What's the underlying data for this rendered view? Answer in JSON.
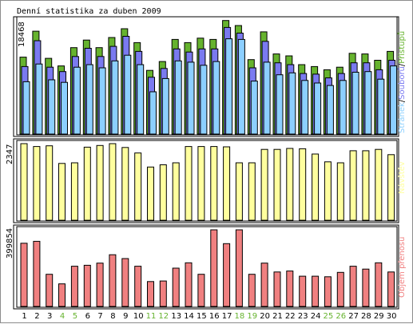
{
  "title": "Denní statistika za duben 2009",
  "colors": {
    "pristupu": "#66b32e",
    "souboru": "#7a7af0",
    "stranek": "#8ccfff",
    "navstev": "#ffff9e",
    "objem": "#f08080",
    "weekend_day": "#66b32e",
    "weekday": "#000000",
    "legend_stranek": "#8ccfff",
    "legend_souboru": "#7a7af0",
    "legend_pristupu": "#66b32e",
    "legend_navstev": "#ffff9e",
    "legend_objem": "#f08080"
  },
  "chart_data": [
    {
      "type": "bar",
      "panel": "top",
      "ymax_label": "18468",
      "ylim": [
        0,
        18468
      ],
      "legend": {
        "stranek": "Stránek",
        "sep1": "/",
        "souboru": "Souborů",
        "sep2": "/",
        "pristupu": "Přístupů"
      },
      "categories": [
        "1",
        "2",
        "3",
        "4",
        "5",
        "6",
        "7",
        "8",
        "9",
        "10",
        "11",
        "12",
        "13",
        "14",
        "15",
        "16",
        "17",
        "18",
        "19",
        "20",
        "21",
        "22",
        "23",
        "24",
        "25",
        "26",
        "27",
        "28",
        "29",
        "30"
      ],
      "series": [
        {
          "name": "Přístupů",
          "values": [
            12200,
            16300,
            12000,
            10800,
            13700,
            14900,
            13700,
            15300,
            16700,
            14500,
            10100,
            11500,
            15000,
            14500,
            15200,
            15000,
            18000,
            17200,
            11800,
            16200,
            12700,
            12400,
            11000,
            10700,
            10200,
            10600,
            12800,
            12700,
            11700,
            13100
          ]
        },
        {
          "name": "Souborů",
          "values": [
            10700,
            14800,
            10600,
            9900,
            12300,
            13600,
            12300,
            13900,
            15500,
            13100,
            9000,
            10400,
            13500,
            13000,
            13500,
            13500,
            16900,
            16000,
            10500,
            14700,
            11300,
            11000,
            9600,
            9500,
            8900,
            9600,
            11300,
            11300,
            10200,
            11700
          ]
        },
        {
          "name": "Stránek",
          "values": [
            8300,
            11100,
            8600,
            8200,
            10600,
            11000,
            10500,
            11600,
            12500,
            11000,
            6700,
            8800,
            11600,
            11400,
            10900,
            11500,
            15100,
            15000,
            8400,
            11400,
            9400,
            9700,
            8500,
            8100,
            7700,
            8500,
            9800,
            9900,
            8700,
            10800
          ]
        }
      ]
    },
    {
      "type": "bar",
      "panel": "middle",
      "ymax_label": "2347",
      "ylim": [
        0,
        2347
      ],
      "legend": {
        "navstev": "Návštěv"
      },
      "categories": [
        "1",
        "2",
        "3",
        "4",
        "5",
        "6",
        "7",
        "8",
        "9",
        "10",
        "11",
        "12",
        "13",
        "14",
        "15",
        "16",
        "17",
        "18",
        "19",
        "20",
        "21",
        "22",
        "23",
        "24",
        "25",
        "26",
        "27",
        "28",
        "29",
        "30"
      ],
      "series": [
        {
          "name": "Návštěv",
          "values": [
            2347,
            2260,
            2280,
            1740,
            1760,
            2240,
            2290,
            2347,
            2230,
            2060,
            1630,
            1700,
            1760,
            2260,
            2260,
            2260,
            2250,
            1760,
            1760,
            2170,
            2170,
            2200,
            2190,
            2030,
            1790,
            1760,
            2130,
            2130,
            2170,
            2010
          ]
        }
      ]
    },
    {
      "type": "bar",
      "panel": "bottom",
      "ymax_label": "399854",
      "ylim": [
        0,
        399854
      ],
      "legend": {
        "objem": "Objem přenosu"
      },
      "categories": [
        "1",
        "2",
        "3",
        "4",
        "5",
        "6",
        "7",
        "8",
        "9",
        "10",
        "11",
        "12",
        "13",
        "14",
        "15",
        "16",
        "17",
        "18",
        "19",
        "20",
        "21",
        "22",
        "23",
        "24",
        "25",
        "26",
        "27",
        "28",
        "29",
        "30"
      ],
      "series": [
        {
          "name": "Objem přenosu",
          "values": [
            330000,
            340000,
            168000,
            118000,
            210000,
            215000,
            226000,
            270000,
            250000,
            210000,
            130000,
            133000,
            200000,
            228000,
            168000,
            399854,
            328000,
            399854,
            168000,
            226000,
            180000,
            185000,
            158000,
            158000,
            155000,
            178000,
            210000,
            195000,
            228000,
            180000
          ]
        }
      ]
    }
  ]
}
